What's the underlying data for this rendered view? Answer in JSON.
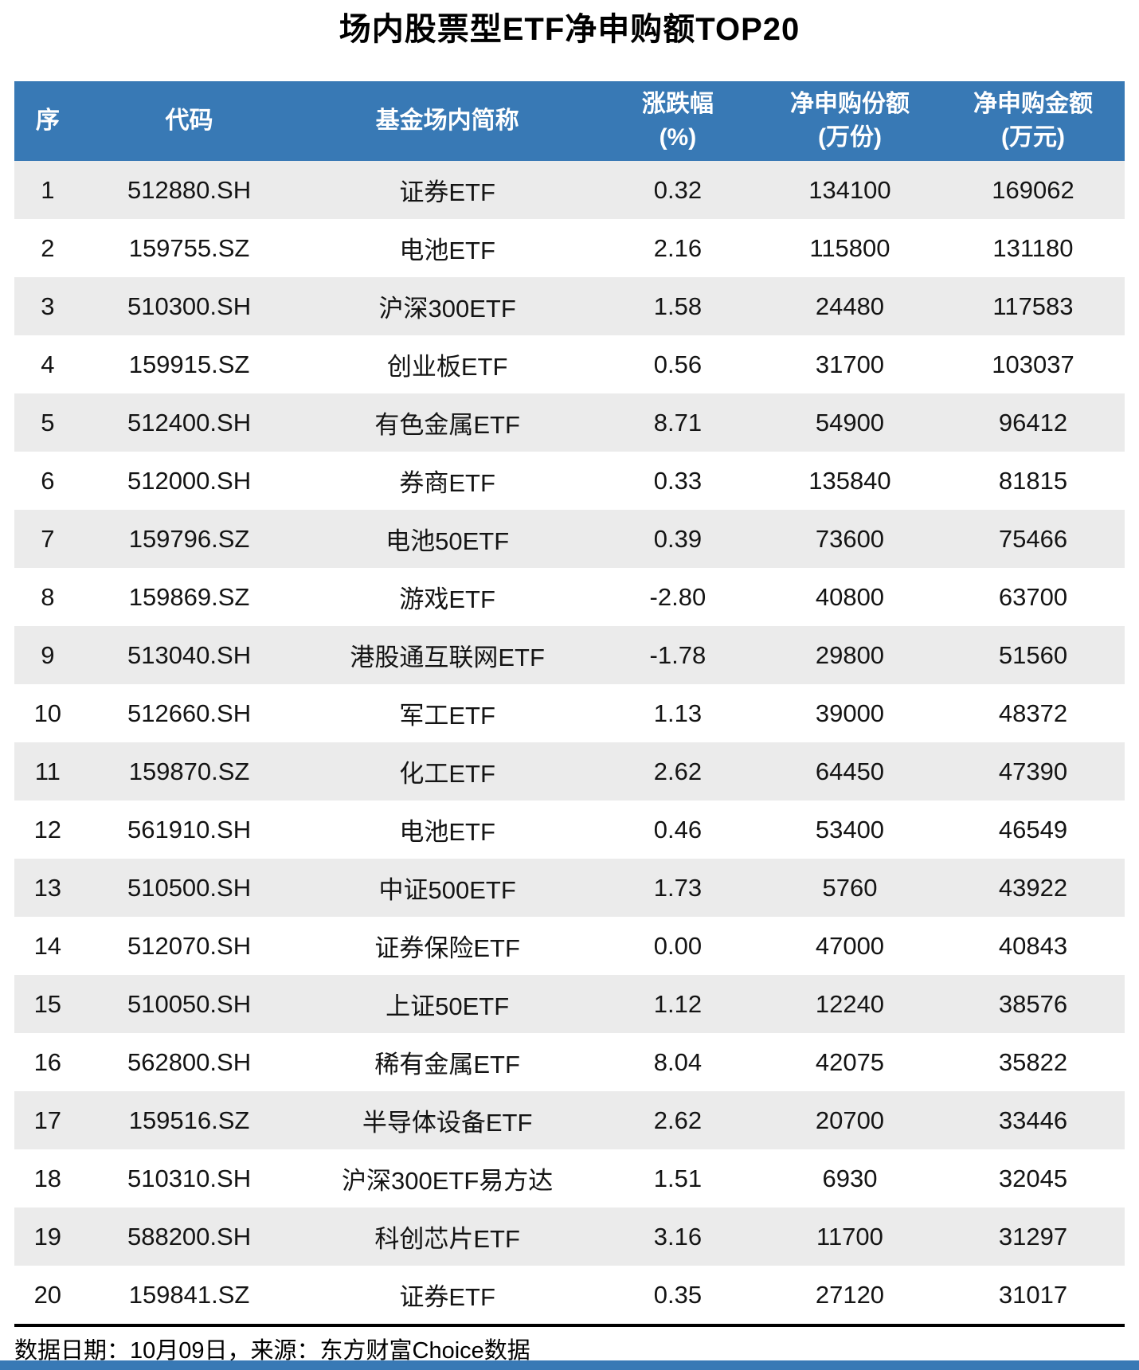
{
  "page": {
    "title": "场内股票型ETF净申购额TOP20",
    "footnote": "数据日期：10月09日，来源：东方财富Choice数据"
  },
  "colors": {
    "header_bg": "#3879B5",
    "header_text": "#FFFFFF",
    "row_stripe_bg": "#EBEBEB",
    "body_text": "#141414",
    "bottom_bar": "#3879B5",
    "footer_rule": "#000000"
  },
  "chart_data": {
    "type": "table",
    "title": "场内股票型ETF净申购额TOP20",
    "columns": [
      {
        "line1": "序",
        "line2": ""
      },
      {
        "line1": "代码",
        "line2": ""
      },
      {
        "line1": "基金场内简称",
        "line2": ""
      },
      {
        "line1": "涨跌幅",
        "line2": "(%)"
      },
      {
        "line1": "净申购份额",
        "line2": "(万份)"
      },
      {
        "line1": "净申购金额",
        "line2": "(万元)"
      }
    ],
    "rows": [
      [
        "1",
        "512880.SH",
        "证券ETF",
        "0.32",
        "134100",
        "169062"
      ],
      [
        "2",
        "159755.SZ",
        "电池ETF",
        "2.16",
        "115800",
        "131180"
      ],
      [
        "3",
        "510300.SH",
        "沪深300ETF",
        "1.58",
        "24480",
        "117583"
      ],
      [
        "4",
        "159915.SZ",
        "创业板ETF",
        "0.56",
        "31700",
        "103037"
      ],
      [
        "5",
        "512400.SH",
        "有色金属ETF",
        "8.71",
        "54900",
        "96412"
      ],
      [
        "6",
        "512000.SH",
        "券商ETF",
        "0.33",
        "135840",
        "81815"
      ],
      [
        "7",
        "159796.SZ",
        "电池50ETF",
        "0.39",
        "73600",
        "75466"
      ],
      [
        "8",
        "159869.SZ",
        "游戏ETF",
        "-2.80",
        "40800",
        "63700"
      ],
      [
        "9",
        "513040.SH",
        "港股通互联网ETF",
        "-1.78",
        "29800",
        "51560"
      ],
      [
        "10",
        "512660.SH",
        "军工ETF",
        "1.13",
        "39000",
        "48372"
      ],
      [
        "11",
        "159870.SZ",
        "化工ETF",
        "2.62",
        "64450",
        "47390"
      ],
      [
        "12",
        "561910.SH",
        "电池ETF",
        "0.46",
        "53400",
        "46549"
      ],
      [
        "13",
        "510500.SH",
        "中证500ETF",
        "1.73",
        "5760",
        "43922"
      ],
      [
        "14",
        "512070.SH",
        "证券保险ETF",
        "0.00",
        "47000",
        "40843"
      ],
      [
        "15",
        "510050.SH",
        "上证50ETF",
        "1.12",
        "12240",
        "38576"
      ],
      [
        "16",
        "562800.SH",
        "稀有金属ETF",
        "8.04",
        "42075",
        "35822"
      ],
      [
        "17",
        "159516.SZ",
        "半导体设备ETF",
        "2.62",
        "20700",
        "33446"
      ],
      [
        "18",
        "510310.SH",
        "沪深300ETF易方达",
        "1.51",
        "6930",
        "32045"
      ],
      [
        "19",
        "588200.SH",
        "科创芯片ETF",
        "3.16",
        "11700",
        "31297"
      ],
      [
        "20",
        "159841.SZ",
        "证券ETF",
        "0.35",
        "27120",
        "31017"
      ]
    ],
    "footnote": "数据日期：10月09日，来源：东方财富Choice数据"
  }
}
